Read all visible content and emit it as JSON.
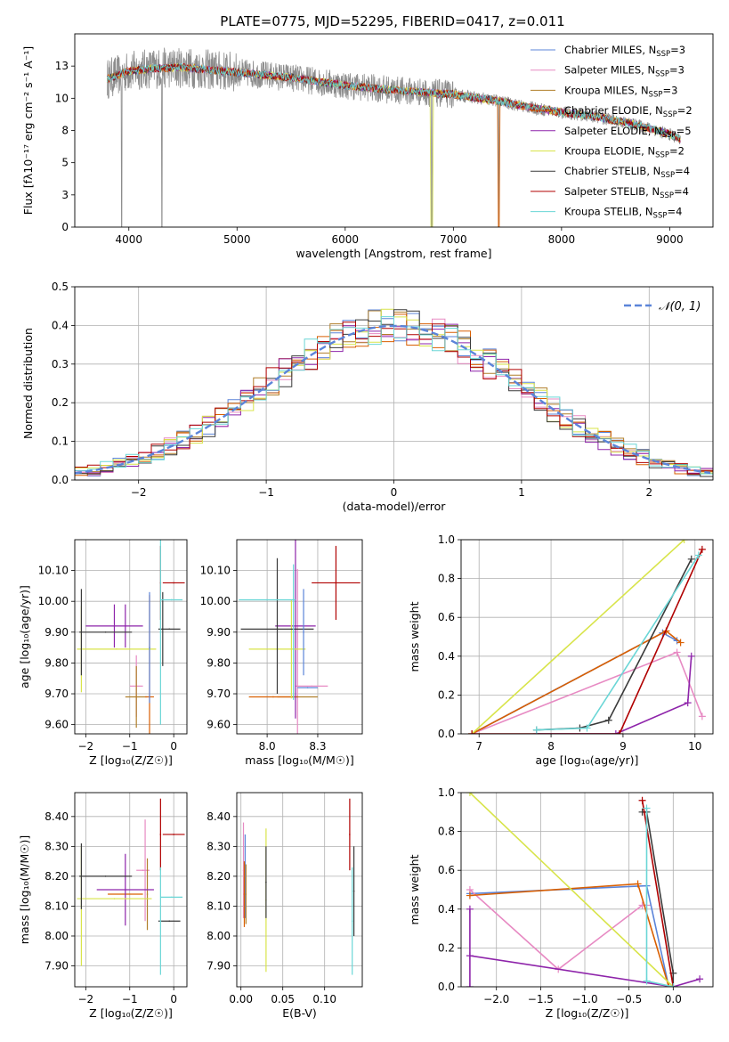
{
  "figure_title": "PLATE=0775, MJD=52295, FIBERID=0417, z=0.011",
  "series_colors": [
    "#5b84d9",
    "#e78ac3",
    "#b07f2a",
    "#d95f02",
    "#8e24aa",
    "#d8e44a",
    "#3a3a3a",
    "#b00000",
    "#6ad6d6"
  ],
  "chart_data": [
    {
      "id": "spectrum",
      "type": "line",
      "title": "PLATE=0775, MJD=52295, FIBERID=0417, z=0.011",
      "xlabel": "wavelength [Angstrom, rest frame]",
      "ylabel": "Flux [fλ10⁻¹⁷ erg cm⁻² s⁻¹ A⁻¹]",
      "xlim": [
        3500,
        9400
      ],
      "ylim": [
        0,
        15
      ],
      "xticks": [
        4000,
        5000,
        6000,
        7000,
        8000,
        9000
      ],
      "yticks": [
        0.0,
        2.5,
        5.0,
        7.5,
        10.0,
        12.5
      ],
      "grid": false,
      "legend_position": "top-right",
      "data_color": "#8c8c8c",
      "data_envelope": {
        "x": [
          3800,
          4000,
          4200,
          4500,
          5000,
          5500,
          6000,
          6500,
          7000,
          7400,
          7700,
          8000,
          8300,
          8600,
          8800,
          9000,
          9100
        ],
        "y": [
          11.5,
          12.1,
          12.3,
          12.4,
          12.0,
          11.6,
          11.0,
          10.6,
          10.3,
          9.8,
          9.3,
          8.9,
          8.6,
          8.1,
          7.7,
          7.2,
          6.8
        ]
      },
      "absorption_features": [
        {
          "x": 3934,
          "depth": 0.0
        },
        {
          "x": 4305,
          "depth": 0.0
        },
        {
          "x": 6800,
          "depth": 0.0
        },
        {
          "x": 7420,
          "depth": 0.0
        }
      ],
      "series": [
        {
          "name": "Chabrier MILES, N",
          "sub": "SSP",
          "suffix": "=3"
        },
        {
          "name": "Salpeter MILES, N",
          "sub": "SSP",
          "suffix": "=3"
        },
        {
          "name": "Kroupa MILES, N",
          "sub": "SSP",
          "suffix": "=3"
        },
        {
          "name": "Chabrier ELODIE, N",
          "sub": "SSP",
          "suffix": "=2"
        },
        {
          "name": "Salpeter ELODIE, N",
          "sub": "SSP",
          "suffix": "=5"
        },
        {
          "name": "Kroupa ELODIE, N",
          "sub": "SSP",
          "suffix": "=2"
        },
        {
          "name": "Chabrier STELIB, N",
          "sub": "SSP",
          "suffix": "=4"
        },
        {
          "name": "Salpeter STELIB, N",
          "sub": "SSP",
          "suffix": "=4"
        },
        {
          "name": "Kroupa STELIB, N",
          "sub": "SSP",
          "suffix": "=4"
        }
      ]
    },
    {
      "id": "residuals",
      "type": "line",
      "xlabel": "(data-model)/error",
      "ylabel": "Normed distribution",
      "xlim": [
        -2.5,
        2.5
      ],
      "ylim": [
        0,
        0.5
      ],
      "xticks": [
        -2,
        -1,
        0,
        1,
        2
      ],
      "yticks": [
        0.0,
        0.1,
        0.2,
        0.3,
        0.4,
        0.5
      ],
      "grid": true,
      "legend_position": "top-right",
      "reference_curve": {
        "name": "𝒩(0, 1)",
        "mean": 0,
        "sigma": 1,
        "color": "#5b84d9",
        "style": "dashed"
      },
      "bin_width": 0.1
    },
    {
      "id": "age_vs_Z",
      "type": "scatter",
      "xlabel": "Z [log₁₀(Z/Z☉)]",
      "ylabel": "age  [log₁₀(age/yr)]",
      "xlim": [
        -2.25,
        0.3
      ],
      "ylim": [
        9.57,
        10.2
      ],
      "xticks": [
        -2,
        -1,
        0
      ],
      "yticks": [
        9.6,
        9.7,
        9.8,
        9.9,
        10.0,
        10.1
      ],
      "grid": true,
      "points": [
        {
          "x": -0.85,
          "y": 9.725,
          "xerr": 0.15,
          "yerr": 0.1,
          "color": 1
        },
        {
          "x": -0.85,
          "y": 9.69,
          "xerr": 0.25,
          "yerr": 0.1,
          "color": 2
        },
        {
          "x": -0.55,
          "y": 9.69,
          "xerr": 0.1,
          "yerr": 0.33,
          "color": 3
        },
        {
          "x": -1.35,
          "y": 9.92,
          "xerr": 0.65,
          "yerr": 0.07,
          "color": 4
        },
        {
          "x": -1.1,
          "y": 9.92,
          "xerr": 0.0,
          "yerr": 0.07,
          "color": 4
        },
        {
          "x": -1.3,
          "y": 9.845,
          "xerr": 0.9,
          "yerr": 0.0,
          "color": 5
        },
        {
          "x": -2.1,
          "y": 9.845,
          "xerr": 0.0,
          "yerr": 0.14,
          "color": 5
        },
        {
          "x": -1.55,
          "y": 9.9,
          "xerr": 0.6,
          "yerr": 0.0,
          "color": 6
        },
        {
          "x": -2.1,
          "y": 9.9,
          "xerr": 0.0,
          "yerr": 0.14,
          "color": 6
        },
        {
          "x": -0.1,
          "y": 9.91,
          "xerr": 0.25,
          "yerr": 0.0,
          "color": 6
        },
        {
          "x": -0.25,
          "y": 9.91,
          "xerr": 0.0,
          "yerr": 0.12,
          "color": 6
        },
        {
          "x": 0.0,
          "y": 10.06,
          "xerr": 0.25,
          "yerr": 0.0,
          "color": 7
        },
        {
          "x": -0.3,
          "y": 10.06,
          "xerr": 0.0,
          "yerr": 0.12,
          "color": 7
        },
        {
          "x": -0.05,
          "y": 10.005,
          "xerr": 0.25,
          "yerr": 0.0,
          "color": 8
        },
        {
          "x": -0.3,
          "y": 9.9,
          "xerr": 0.0,
          "yerr": 0.3,
          "color": 8
        },
        {
          "x": -0.55,
          "y": 9.85,
          "xerr": 0.0,
          "yerr": 0.18,
          "color": 0
        }
      ]
    },
    {
      "id": "age_vs_mass",
      "type": "scatter",
      "xlabel": "mass [log₁₀(M/M☉)]",
      "ylabel": "",
      "xlim": [
        7.85,
        8.47
      ],
      "ylim": [
        9.57,
        10.2
      ],
      "xticks": [
        8.0,
        8.25
      ],
      "yticks": [
        9.6,
        9.7,
        9.8,
        9.9,
        10.0,
        10.1
      ],
      "grid": true,
      "points": [
        {
          "x": 8.22,
          "y": 9.725,
          "xerr": 0.08,
          "yerr": 0.0,
          "color": 1
        },
        {
          "x": 8.15,
          "y": 9.725,
          "xerr": 0.0,
          "yerr": 0.38,
          "color": 1
        },
        {
          "x": 8.15,
          "y": 9.69,
          "xerr": 0.1,
          "yerr": 0.0,
          "color": 2
        },
        {
          "x": 8.03,
          "y": 9.69,
          "xerr": 0.12,
          "yerr": 0.0,
          "color": 3
        },
        {
          "x": 8.14,
          "y": 9.92,
          "xerr": 0.1,
          "yerr": 0.3,
          "color": 4
        },
        {
          "x": 8.05,
          "y": 9.845,
          "xerr": 0.14,
          "yerr": 0.0,
          "color": 5
        },
        {
          "x": 8.12,
          "y": 9.845,
          "xerr": 0.0,
          "yerr": 0.16,
          "color": 5
        },
        {
          "x": 8.05,
          "y": 9.91,
          "xerr": 0.18,
          "yerr": 0.0,
          "color": 6
        },
        {
          "x": 8.05,
          "y": 9.92,
          "xerr": 0.0,
          "yerr": 0.22,
          "color": 6
        },
        {
          "x": 8.34,
          "y": 10.06,
          "xerr": 0.12,
          "yerr": 0.12,
          "color": 7
        },
        {
          "x": 8.0,
          "y": 10.005,
          "xerr": 0.14,
          "yerr": 0.0,
          "color": 8
        },
        {
          "x": 8.13,
          "y": 9.9,
          "xerr": 0.0,
          "yerr": 0.22,
          "color": 8
        },
        {
          "x": 8.18,
          "y": 9.9,
          "xerr": 0.0,
          "yerr": 0.14,
          "color": 0
        },
        {
          "x": 8.2,
          "y": 9.72,
          "xerr": 0.05,
          "yerr": 0.0,
          "color": 0
        }
      ]
    },
    {
      "id": "weight_vs_age",
      "type": "line",
      "xlabel": "age  [log₁₀(age/yr)]",
      "ylabel": "mass weight",
      "xlim": [
        6.75,
        10.25
      ],
      "ylim": [
        0,
        1
      ],
      "xticks": [
        7,
        8,
        9,
        10
      ],
      "yticks": [
        0.0,
        0.2,
        0.4,
        0.6,
        0.8,
        1.0
      ],
      "grid": true,
      "series": [
        {
          "color": 0,
          "x": [
            6.9,
            9.55,
            9.75
          ],
          "y": [
            0.0,
            0.52,
            0.48
          ]
        },
        {
          "color": 1,
          "x": [
            6.9,
            9.75,
            10.1
          ],
          "y": [
            0.0,
            0.42,
            0.09
          ]
        },
        {
          "color": 3,
          "x": [
            6.9,
            9.6,
            9.8
          ],
          "y": [
            0.0,
            0.53,
            0.47
          ]
        },
        {
          "color": 5,
          "x": [
            6.9,
            9.85
          ],
          "y": [
            0.0,
            1.0
          ]
        },
        {
          "color": 4,
          "x": [
            7.8,
            8.9,
            9.9,
            9.95
          ],
          "y": [
            0.0,
            0.0,
            0.16,
            0.4
          ]
        },
        {
          "color": 6,
          "x": [
            7.8,
            8.4,
            8.8,
            9.95
          ],
          "y": [
            0.02,
            0.03,
            0.07,
            0.9
          ]
        },
        {
          "color": 7,
          "x": [
            6.9,
            8.95,
            10.1
          ],
          "y": [
            0.0,
            0.0,
            0.95
          ]
        },
        {
          "color": 8,
          "x": [
            7.8,
            8.5,
            10.05
          ],
          "y": [
            0.02,
            0.03,
            0.92
          ]
        }
      ]
    },
    {
      "id": "mass_vs_Z",
      "type": "scatter",
      "xlabel": "Z [log₁₀(Z/Z☉)]",
      "ylabel": "mass [log₁₀(M/M☉)]",
      "xlim": [
        -2.25,
        0.3
      ],
      "ylim": [
        7.83,
        8.48
      ],
      "xticks": [
        -2,
        -1,
        0
      ],
      "yticks": [
        7.9,
        8.0,
        8.1,
        8.2,
        8.3,
        8.4
      ],
      "grid": true,
      "points": [
        {
          "x": -0.7,
          "y": 8.22,
          "xerr": 0.15,
          "yerr": 0.0,
          "color": 1
        },
        {
          "x": -0.65,
          "y": 8.22,
          "xerr": 0.0,
          "yerr": 0.17,
          "color": 1
        },
        {
          "x": -0.6,
          "y": 8.14,
          "xerr": 0.0,
          "yerr": 0.12,
          "color": 2
        },
        {
          "x": -1.1,
          "y": 8.14,
          "xerr": 0.4,
          "yerr": 0.0,
          "color": 3
        },
        {
          "x": -1.1,
          "y": 8.155,
          "xerr": 0.65,
          "yerr": 0.12,
          "color": 4
        },
        {
          "x": -1.35,
          "y": 8.125,
          "xerr": 0.85,
          "yerr": 0.0,
          "color": 5
        },
        {
          "x": -2.1,
          "y": 8.1,
          "xerr": 0.0,
          "yerr": 0.2,
          "color": 5
        },
        {
          "x": -1.55,
          "y": 8.2,
          "xerr": 0.6,
          "yerr": 0.0,
          "color": 6
        },
        {
          "x": -2.1,
          "y": 8.2,
          "xerr": 0.0,
          "yerr": 0.11,
          "color": 6
        },
        {
          "x": -0.1,
          "y": 8.05,
          "xerr": 0.25,
          "yerr": 0.0,
          "color": 6
        },
        {
          "x": 0.0,
          "y": 8.34,
          "xerr": 0.25,
          "yerr": 0.0,
          "color": 7
        },
        {
          "x": -0.3,
          "y": 8.34,
          "xerr": 0.0,
          "yerr": 0.12,
          "color": 7
        },
        {
          "x": -0.05,
          "y": 8.13,
          "xerr": 0.25,
          "yerr": 0.0,
          "color": 8
        },
        {
          "x": -0.3,
          "y": 8.05,
          "xerr": 0.0,
          "yerr": 0.18,
          "color": 8
        }
      ]
    },
    {
      "id": "mass_vs_ebv",
      "type": "scatter",
      "xlabel": "E(B-V)",
      "ylabel": "",
      "xlim": [
        -0.005,
        0.145
      ],
      "ylim": [
        7.83,
        8.48
      ],
      "xticks": [
        0.0,
        0.05,
        0.1
      ],
      "yticks": [
        7.9,
        8.0,
        8.1,
        8.2,
        8.3,
        8.4
      ],
      "grid": true,
      "points": [
        {
          "x": 0.003,
          "y": 8.22,
          "xerr": 0.0,
          "yerr": 0.16,
          "color": 1
        },
        {
          "x": 0.005,
          "y": 8.2,
          "xerr": 0.0,
          "yerr": 0.14,
          "color": 0
        },
        {
          "x": 0.004,
          "y": 8.14,
          "xerr": 0.0,
          "yerr": 0.11,
          "color": 3
        },
        {
          "x": 0.006,
          "y": 8.14,
          "xerr": 0.0,
          "yerr": 0.1,
          "color": 2
        },
        {
          "x": 0.03,
          "y": 8.12,
          "xerr": 0.0,
          "yerr": 0.24,
          "color": 5
        },
        {
          "x": 0.03,
          "y": 8.18,
          "xerr": 0.0,
          "yerr": 0.12,
          "color": 6
        },
        {
          "x": 0.13,
          "y": 8.34,
          "xerr": 0.0,
          "yerr": 0.12,
          "color": 7
        },
        {
          "x": 0.133,
          "y": 8.05,
          "xerr": 0.0,
          "yerr": 0.18,
          "color": 8
        },
        {
          "x": 0.135,
          "y": 8.15,
          "xerr": 0.0,
          "yerr": 0.15,
          "color": 6
        }
      ]
    },
    {
      "id": "weight_vs_Z",
      "type": "line",
      "xlabel": "Z [log₁₀(Z/Z☉)]",
      "ylabel": "mass weight",
      "xlim": [
        -2.4,
        0.45
      ],
      "ylim": [
        0,
        1
      ],
      "xticks": [
        -2.0,
        -1.5,
        -1.0,
        -0.5,
        0.0
      ],
      "yticks": [
        0.0,
        0.2,
        0.4,
        0.6,
        0.8,
        1.0
      ],
      "grid": true,
      "series": [
        {
          "color": 0,
          "x": [
            -2.3,
            -0.3,
            -0.05
          ],
          "y": [
            0.48,
            0.52,
            0.0
          ]
        },
        {
          "color": 1,
          "x": [
            -2.3,
            -1.3,
            -0.35,
            -0.3
          ],
          "y": [
            0.5,
            0.09,
            0.42,
            0.42
          ]
        },
        {
          "color": 3,
          "x": [
            -2.3,
            -0.4,
            -0.05
          ],
          "y": [
            0.47,
            0.53,
            0.0
          ]
        },
        {
          "color": 5,
          "x": [
            -2.3,
            0.0
          ],
          "y": [
            1.0,
            0.0
          ]
        },
        {
          "color": 4,
          "x": [
            -2.3,
            -2.3,
            -2.3,
            0.0,
            0.3
          ],
          "y": [
            0.4,
            0.0,
            0.16,
            0.0,
            0.04
          ]
        },
        {
          "color": 6,
          "x": [
            -0.35,
            -0.3,
            0.0,
            0.0
          ],
          "y": [
            0.9,
            0.9,
            0.07,
            0.0
          ]
        },
        {
          "color": 7,
          "x": [
            -0.35,
            0.0
          ],
          "y": [
            0.96,
            0.0
          ]
        },
        {
          "color": 8,
          "x": [
            -0.3,
            -0.3,
            0.0
          ],
          "y": [
            0.92,
            0.03,
            0.0
          ]
        }
      ]
    }
  ]
}
